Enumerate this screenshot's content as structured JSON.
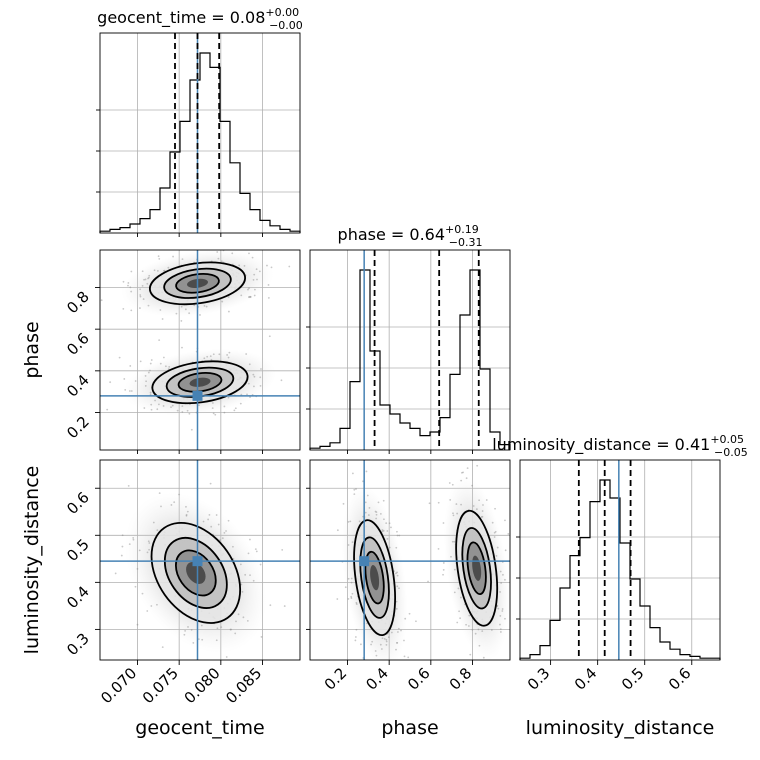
{
  "chart_data": {
    "type": "corner",
    "parameters": [
      "geocent_time",
      "phase",
      "luminosity_distance"
    ],
    "xlabels": [
      "geocent_time",
      "phase",
      "luminosity_distance"
    ],
    "ylabels": [
      "",
      "phase",
      "luminosity_distance"
    ],
    "titles": [
      {
        "param": "geocent_time",
        "prefix": "geocent_time = 0.08",
        "plus": "+0.00",
        "minus": "−0.00"
      },
      {
        "param": "phase",
        "prefix": "phase = 0.64",
        "plus": "+0.19",
        "minus": "−0.31"
      },
      {
        "param": "luminosity_distance",
        "prefix": "luminosity_distance = 0.41",
        "plus": "+0.05",
        "minus": "−0.05"
      }
    ],
    "ranges": [
      [
        0.0655,
        0.0895
      ],
      [
        0.02,
        0.98
      ],
      [
        0.235,
        0.66
      ]
    ],
    "ticks": [
      {
        "values": [
          0.07,
          0.075,
          0.08,
          0.085
        ],
        "labels": [
          "0.070",
          "0.075",
          "0.080",
          "0.085"
        ]
      },
      {
        "values": [
          0.2,
          0.4,
          0.6,
          0.8
        ],
        "labels": [
          "0.2",
          "0.4",
          "0.6",
          "0.8"
        ]
      },
      {
        "values": [
          0.3,
          0.4,
          0.5,
          0.6
        ],
        "labels": [
          "0.3",
          "0.4",
          "0.5",
          "0.6"
        ]
      }
    ],
    "truths": [
      0.0772,
      0.28,
      0.445
    ],
    "quantiles": [
      [
        0.0745,
        0.0772,
        0.0798
      ],
      [
        0.33,
        0.64,
        0.83
      ],
      [
        0.36,
        0.415,
        0.47
      ]
    ],
    "histograms": [
      {
        "edges_start": 0.0655,
        "edges_end": 0.0895,
        "counts": [
          1,
          2,
          3,
          5,
          8,
          13,
          25,
          45,
          62,
          85,
          100,
          92,
          62,
          39,
          22,
          13,
          7,
          4,
          2,
          1
        ]
      },
      {
        "edges_start": 0.02,
        "edges_end": 0.98,
        "counts": [
          1,
          2,
          4,
          12,
          38,
          100,
          55,
          25,
          20,
          15,
          12,
          8,
          10,
          18,
          42,
          75,
          100,
          45,
          10,
          3
        ]
      },
      {
        "edges_start": 0.235,
        "edges_end": 0.66,
        "counts": [
          1,
          3,
          8,
          22,
          40,
          58,
          68,
          88,
          100,
          90,
          65,
          45,
          30,
          18,
          10,
          6,
          3,
          2,
          1,
          1
        ]
      }
    ],
    "contour_modes": [
      {
        "x": "geocent_time",
        "y": "phase",
        "centers": [
          [
            0.0772,
            0.82
          ],
          [
            0.0775,
            0.345
          ]
        ]
      },
      {
        "x": "geocent_time",
        "y": "luminosity_distance",
        "centers": [
          [
            0.077,
            0.42
          ]
        ]
      },
      {
        "x": "phase",
        "y": "luminosity_distance",
        "centers": [
          [
            0.33,
            0.41
          ],
          [
            0.82,
            0.43
          ]
        ]
      }
    ]
  }
}
